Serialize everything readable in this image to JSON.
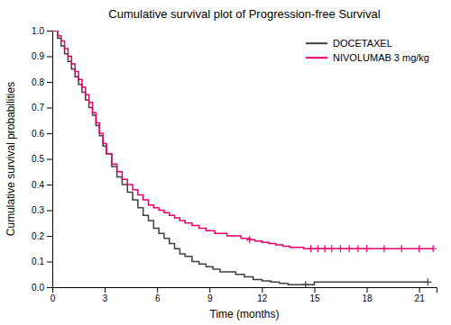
{
  "chart_data": {
    "type": "step",
    "title": "Cumulative survival plot of Progression-free Survival",
    "x_label": "Time (months)",
    "y_label": "Cumulative survival probabilities",
    "xlim": [
      0,
      22
    ],
    "ylim": [
      0,
      1.0
    ],
    "xticks": [
      0,
      3,
      6,
      9,
      12,
      15,
      18,
      21
    ],
    "yticks": [
      {
        "value": 0.0,
        "label": "0.0"
      },
      0.1,
      0.2,
      0.3,
      0.4,
      0.5,
      0.6,
      0.7,
      0.8,
      0.9,
      {
        "value": 1.0,
        "label": "1.0"
      }
    ],
    "grid": false,
    "legend": "upper right",
    "series": [
      {
        "name": "DOCETAXEL",
        "color": "#404040",
        "marker": "plus",
        "x": [
          0,
          0.3,
          0.5,
          0.7,
          0.9,
          1.1,
          1.3,
          1.5,
          1.7,
          1.9,
          2.1,
          2.3,
          2.5,
          2.7,
          2.9,
          3.1,
          3.4,
          3.7,
          4.0,
          4.3,
          4.6,
          4.9,
          5.2,
          5.5,
          5.8,
          6.1,
          6.4,
          6.7,
          7.0,
          7.3,
          7.6,
          8.0,
          8.4,
          8.8,
          9.2,
          9.6,
          10.0,
          10.5,
          11.0,
          11.5,
          12.0,
          12.5,
          13.0,
          13.5,
          14.0,
          14.5,
          15.0,
          21.5
        ],
        "values": [
          1.0,
          0.97,
          0.94,
          0.91,
          0.88,
          0.85,
          0.82,
          0.79,
          0.76,
          0.73,
          0.7,
          0.67,
          0.63,
          0.59,
          0.55,
          0.52,
          0.47,
          0.43,
          0.4,
          0.37,
          0.34,
          0.31,
          0.28,
          0.26,
          0.23,
          0.21,
          0.19,
          0.17,
          0.15,
          0.13,
          0.12,
          0.1,
          0.09,
          0.08,
          0.07,
          0.06,
          0.06,
          0.05,
          0.04,
          0.03,
          0.025,
          0.02,
          0.015,
          0.01,
          0.01,
          0.01,
          0.02,
          0.02
        ],
        "censor_x": [
          14.5,
          21.5
        ],
        "censor_values": [
          0.01,
          0.02
        ]
      },
      {
        "name": "NIVOLUMAB 3 mg/kg",
        "color": "#E8006E",
        "marker": "plus",
        "x": [
          0,
          0.3,
          0.5,
          0.7,
          0.9,
          1.1,
          1.3,
          1.5,
          1.7,
          1.9,
          2.1,
          2.3,
          2.5,
          2.7,
          2.9,
          3.1,
          3.4,
          3.7,
          4.0,
          4.3,
          4.6,
          4.9,
          5.2,
          5.5,
          5.8,
          6.1,
          6.4,
          6.7,
          7.0,
          7.3,
          7.6,
          8.0,
          8.4,
          8.8,
          9.0,
          9.3,
          9.6,
          10.0,
          10.4,
          10.8,
          11.0,
          11.3,
          11.6,
          12.0,
          12.4,
          12.8,
          13.2,
          13.6,
          14.0,
          14.4,
          14.8,
          15.2,
          15.6,
          16.0,
          16.5,
          17.0,
          17.5,
          18.0,
          19.0,
          20.0,
          21.0,
          21.8
        ],
        "values": [
          1.0,
          0.98,
          0.96,
          0.93,
          0.9,
          0.87,
          0.84,
          0.81,
          0.78,
          0.75,
          0.72,
          0.68,
          0.64,
          0.6,
          0.56,
          0.52,
          0.48,
          0.45,
          0.42,
          0.4,
          0.38,
          0.36,
          0.34,
          0.32,
          0.31,
          0.3,
          0.29,
          0.28,
          0.27,
          0.26,
          0.25,
          0.24,
          0.23,
          0.22,
          0.22,
          0.21,
          0.21,
          0.2,
          0.2,
          0.19,
          0.19,
          0.185,
          0.18,
          0.175,
          0.17,
          0.165,
          0.16,
          0.155,
          0.155,
          0.15,
          0.15,
          0.15,
          0.15,
          0.15,
          0.15,
          0.15,
          0.15,
          0.15,
          0.15,
          0.15,
          0.15,
          0.15
        ],
        "censor_x": [
          11.3,
          14.8,
          15.2,
          15.6,
          16.0,
          16.5,
          17.0,
          17.5,
          18.0,
          19.0,
          20.0,
          21.0,
          21.8
        ],
        "censor_values": [
          0.185,
          0.15,
          0.15,
          0.15,
          0.15,
          0.15,
          0.15,
          0.15,
          0.15,
          0.15,
          0.15,
          0.15,
          0.15
        ]
      }
    ]
  }
}
